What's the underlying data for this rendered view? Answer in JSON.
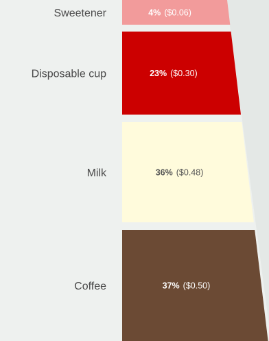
{
  "chart_data": {
    "type": "bar",
    "orientation": "stacked-vertical",
    "title": "",
    "categories": [
      "Sweetener",
      "Disposable cup",
      "Milk",
      "Coffee"
    ],
    "percent_labels": [
      "4%",
      "23%",
      "36%",
      "37%"
    ],
    "value_labels": [
      "($0.06)",
      "($0.30)",
      "($0.48)",
      "($0.50)"
    ],
    "values": [
      0.06,
      0.3,
      0.48,
      0.5
    ],
    "colors": [
      "#f29b9b",
      "#cc0000",
      "#fffbdc",
      "#6b4a34"
    ],
    "label_colors": [
      "#ffffff",
      "#ffffff",
      "#555555",
      "#ffffff"
    ],
    "legend": "none",
    "grid": false
  }
}
